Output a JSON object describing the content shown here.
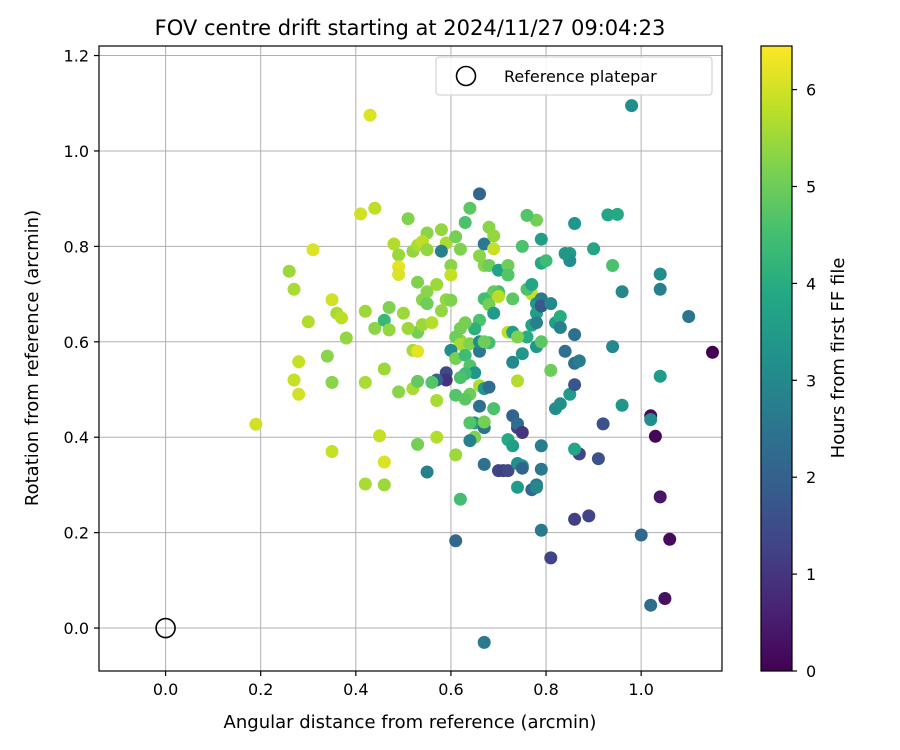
{
  "chart_data": {
    "type": "scatter",
    "title": "FOV centre drift starting at 2024/11/27 09:04:23",
    "xlabel": "Angular distance from reference (arcmin)",
    "ylabel": "Rotation from reference (arcmin)",
    "xlim": [
      -0.14,
      1.17
    ],
    "ylim": [
      -0.09,
      1.22
    ],
    "xticks": [
      0.0,
      0.2,
      0.4,
      0.6,
      0.8,
      1.0
    ],
    "yticks": [
      0.0,
      0.2,
      0.4,
      0.6,
      0.8,
      1.0,
      1.2
    ],
    "xtick_labels": [
      "0.0",
      "0.2",
      "0.4",
      "0.6",
      "0.8",
      "1.0"
    ],
    "ytick_labels": [
      "0.0",
      "0.2",
      "0.4",
      "0.6",
      "0.8",
      "1.0",
      "1.2"
    ],
    "grid": true,
    "legend": {
      "location": "top-right",
      "entries": [
        "Reference platepar"
      ]
    },
    "colorbar": {
      "label": "Hours from first FF file",
      "colormap": "viridis",
      "range": [
        0,
        6.45
      ],
      "ticks": [
        0,
        1,
        2,
        3,
        4,
        5,
        6
      ],
      "tick_labels": [
        "0",
        "1",
        "2",
        "3",
        "4",
        "5",
        "6"
      ]
    },
    "reference_point": {
      "x": 0.0,
      "y": 0.0
    },
    "points": [
      [
        0.43,
        1.075,
        6.1
      ],
      [
        0.41,
        0.868,
        6.0
      ],
      [
        0.44,
        0.88,
        5.8
      ],
      [
        0.31,
        0.793,
        6.1
      ],
      [
        0.26,
        0.748,
        5.5
      ],
      [
        0.27,
        0.71,
        5.6
      ],
      [
        0.3,
        0.642,
        5.7
      ],
      [
        0.28,
        0.558,
        5.9
      ],
      [
        0.27,
        0.52,
        5.9
      ],
      [
        0.28,
        0.49,
        6.0
      ],
      [
        0.19,
        0.427,
        6.0
      ],
      [
        0.35,
        0.688,
        6.0
      ],
      [
        0.36,
        0.66,
        5.6
      ],
      [
        0.37,
        0.65,
        5.8
      ],
      [
        0.34,
        0.57,
        5.3
      ],
      [
        0.38,
        0.608,
        5.4
      ],
      [
        0.35,
        0.515,
        5.3
      ],
      [
        0.35,
        0.37,
        5.9
      ],
      [
        0.42,
        0.515,
        5.6
      ],
      [
        0.42,
        0.302,
        5.6
      ],
      [
        0.46,
        0.3,
        5.5
      ],
      [
        0.45,
        0.403,
        5.9
      ],
      [
        0.46,
        0.348,
        6.1
      ],
      [
        0.46,
        0.543,
        5.5
      ],
      [
        0.44,
        0.628,
        5.3
      ],
      [
        0.42,
        0.664,
        5.5
      ],
      [
        0.46,
        0.645,
        4.3
      ],
      [
        0.47,
        0.672,
        5.2
      ],
      [
        0.47,
        0.625,
        5.4
      ],
      [
        0.48,
        0.805,
        5.7
      ],
      [
        0.49,
        0.782,
        5.5
      ],
      [
        0.49,
        0.757,
        6.2
      ],
      [
        0.49,
        0.741,
        6.1
      ],
      [
        0.51,
        0.858,
        5.2
      ],
      [
        0.52,
        0.79,
        5.4
      ],
      [
        0.53,
        0.802,
        5.6
      ],
      [
        0.55,
        0.828,
        5.3
      ],
      [
        0.54,
        0.81,
        5.8
      ],
      [
        0.55,
        0.793,
        5.4
      ],
      [
        0.53,
        0.725,
        5.2
      ],
      [
        0.54,
        0.688,
        5.3
      ],
      [
        0.55,
        0.705,
        5.3
      ],
      [
        0.53,
        0.62,
        5.1
      ],
      [
        0.51,
        0.628,
        5.5
      ],
      [
        0.52,
        0.582,
        5.6
      ],
      [
        0.53,
        0.58,
        6.2
      ],
      [
        0.52,
        0.502,
        5.6
      ],
      [
        0.49,
        0.495,
        5.3
      ],
      [
        0.5,
        0.66,
        5.5
      ],
      [
        0.54,
        0.636,
        5.5
      ],
      [
        0.56,
        0.64,
        5.7
      ],
      [
        0.55,
        0.68,
        5.0
      ],
      [
        0.57,
        0.72,
        5.5
      ],
      [
        0.58,
        0.835,
        5.4
      ],
      [
        0.59,
        0.807,
        5.6
      ],
      [
        0.58,
        0.79,
        2.8
      ],
      [
        0.6,
        0.76,
        5.3
      ],
      [
        0.6,
        0.74,
        5.9
      ],
      [
        0.59,
        0.688,
        5.4
      ],
      [
        0.58,
        0.665,
        5.4
      ],
      [
        0.6,
        0.687,
        5.2
      ],
      [
        0.61,
        0.82,
        5.1
      ],
      [
        0.62,
        0.794,
        5.2
      ],
      [
        0.63,
        0.85,
        4.6
      ],
      [
        0.64,
        0.88,
        4.8
      ],
      [
        0.66,
        0.91,
        2.1
      ],
      [
        0.67,
        0.805,
        2.6
      ],
      [
        0.68,
        0.84,
        5.3
      ],
      [
        0.69,
        0.822,
        5.4
      ],
      [
        0.69,
        0.795,
        5.9
      ],
      [
        0.66,
        0.78,
        5.3
      ],
      [
        0.67,
        0.76,
        5.3
      ],
      [
        0.68,
        0.76,
        5.0
      ],
      [
        0.7,
        0.75,
        3.7
      ],
      [
        0.72,
        0.76,
        5.0
      ],
      [
        0.72,
        0.74,
        4.7
      ],
      [
        0.73,
        0.69,
        4.8
      ],
      [
        0.7,
        0.705,
        4.5
      ],
      [
        0.69,
        0.705,
        4.9
      ],
      [
        0.68,
        0.692,
        5.0
      ],
      [
        0.67,
        0.69,
        4.5
      ],
      [
        0.68,
        0.678,
        5.1
      ],
      [
        0.7,
        0.7,
        4.7
      ],
      [
        0.7,
        0.695,
        5.8
      ],
      [
        0.69,
        0.66,
        3.5
      ],
      [
        0.66,
        0.645,
        4.6
      ],
      [
        0.65,
        0.627,
        4.1
      ],
      [
        0.63,
        0.64,
        5.1
      ],
      [
        0.62,
        0.628,
        5.1
      ],
      [
        0.62,
        0.602,
        5.3
      ],
      [
        0.61,
        0.61,
        5.0
      ],
      [
        0.62,
        0.595,
        5.6
      ],
      [
        0.6,
        0.582,
        3.1
      ],
      [
        0.61,
        0.565,
        5.1
      ],
      [
        0.63,
        0.572,
        4.4
      ],
      [
        0.64,
        0.596,
        5.2
      ],
      [
        0.64,
        0.55,
        4.7
      ],
      [
        0.65,
        0.535,
        3.4
      ],
      [
        0.63,
        0.533,
        4.4
      ],
      [
        0.62,
        0.525,
        4.6
      ],
      [
        0.64,
        0.49,
        5.0
      ],
      [
        0.61,
        0.488,
        4.7
      ],
      [
        0.63,
        0.48,
        4.8
      ],
      [
        0.59,
        0.535,
        1.4
      ],
      [
        0.59,
        0.52,
        0.9
      ],
      [
        0.57,
        0.52,
        2.1
      ],
      [
        0.57,
        0.477,
        5.6
      ],
      [
        0.56,
        0.515,
        4.7
      ],
      [
        0.57,
        0.4,
        5.7
      ],
      [
        0.53,
        0.517,
        4.9
      ],
      [
        0.53,
        0.385,
        5.1
      ],
      [
        0.55,
        0.327,
        2.8
      ],
      [
        0.61,
        0.363,
        5.5
      ],
      [
        0.62,
        0.27,
        4.5
      ],
      [
        0.61,
        0.183,
        2.2
      ],
      [
        0.65,
        0.43,
        3.6
      ],
      [
        0.64,
        0.43,
        4.7
      ],
      [
        0.65,
        0.4,
        5.2
      ],
      [
        0.64,
        0.393,
        2.8
      ],
      [
        0.66,
        0.465,
        2.4
      ],
      [
        0.67,
        0.42,
        2.5
      ],
      [
        0.67,
        0.432,
        5.1
      ],
      [
        0.67,
        0.343,
        2.4
      ],
      [
        0.66,
        0.508,
        5.7
      ],
      [
        0.67,
        0.502,
        3.4
      ],
      [
        0.68,
        0.505,
        2.3
      ],
      [
        0.69,
        0.46,
        4.6
      ],
      [
        0.7,
        0.33,
        1.3
      ],
      [
        0.71,
        0.33,
        1.2
      ],
      [
        0.72,
        0.33,
        1.4
      ],
      [
        0.72,
        0.395,
        3.9
      ],
      [
        0.73,
        0.382,
        3.6
      ],
      [
        0.74,
        0.42,
        1.2
      ],
      [
        0.73,
        0.445,
        2.0
      ],
      [
        0.74,
        0.428,
        2.3
      ],
      [
        0.75,
        0.41,
        1.0
      ],
      [
        0.74,
        0.345,
        3.2
      ],
      [
        0.75,
        0.34,
        3.4
      ],
      [
        0.75,
        0.335,
        2.1
      ],
      [
        0.74,
        0.295,
        3.5
      ],
      [
        0.77,
        0.29,
        2.2
      ],
      [
        0.78,
        0.3,
        2.6
      ],
      [
        0.78,
        0.295,
        3.0
      ],
      [
        0.79,
        0.333,
        2.6
      ],
      [
        0.79,
        0.382,
        2.7
      ],
      [
        0.79,
        0.205,
        2.6
      ],
      [
        0.81,
        0.147,
        1.3
      ],
      [
        0.67,
        -0.03,
        2.6
      ],
      [
        0.66,
        0.58,
        2.6
      ],
      [
        0.66,
        0.6,
        3.1
      ],
      [
        0.68,
        0.598,
        4.5
      ],
      [
        0.67,
        0.6,
        5.0
      ],
      [
        0.72,
        0.62,
        5.8
      ],
      [
        0.73,
        0.62,
        3.6
      ],
      [
        0.73,
        0.557,
        3.0
      ],
      [
        0.75,
        0.575,
        3.4
      ],
      [
        0.74,
        0.518,
        5.7
      ],
      [
        0.76,
        0.61,
        4.0
      ],
      [
        0.77,
        0.7,
        5.9
      ],
      [
        0.76,
        0.71,
        4.6
      ],
      [
        0.77,
        0.72,
        3.8
      ],
      [
        0.78,
        0.68,
        3.3
      ],
      [
        0.78,
        0.66,
        3.6
      ],
      [
        0.77,
        0.635,
        3.7
      ],
      [
        0.78,
        0.64,
        2.8
      ],
      [
        0.78,
        0.59,
        3.4
      ],
      [
        0.79,
        0.69,
        2.6
      ],
      [
        0.79,
        0.675,
        1.8
      ],
      [
        0.79,
        0.6,
        4.8
      ],
      [
        0.81,
        0.54,
        5.0
      ],
      [
        0.81,
        0.68,
        3.0
      ],
      [
        0.82,
        0.64,
        3.6
      ],
      [
        0.83,
        0.653,
        4.0
      ],
      [
        0.83,
        0.63,
        2.8
      ],
      [
        0.85,
        0.785,
        3.5
      ],
      [
        0.85,
        0.77,
        3.1
      ],
      [
        0.84,
        0.785,
        3.4
      ],
      [
        0.79,
        0.765,
        3.9
      ],
      [
        0.8,
        0.77,
        4.4
      ],
      [
        0.79,
        0.815,
        3.6
      ],
      [
        0.78,
        0.855,
        5.1
      ],
      [
        0.76,
        0.865,
        4.7
      ],
      [
        0.75,
        0.8,
        4.6
      ],
      [
        0.74,
        0.61,
        5.2
      ],
      [
        0.82,
        0.46,
        3.1
      ],
      [
        0.83,
        0.47,
        3.2
      ],
      [
        0.85,
        0.49,
        3.5
      ],
      [
        0.84,
        0.58,
        2.4
      ],
      [
        0.86,
        0.555,
        2.4
      ],
      [
        0.87,
        0.56,
        2.7
      ],
      [
        0.86,
        0.615,
        2.4
      ],
      [
        0.86,
        0.51,
        1.7
      ],
      [
        0.86,
        0.228,
        1.2
      ],
      [
        0.89,
        0.235,
        1.3
      ],
      [
        0.87,
        0.365,
        1.3
      ],
      [
        0.86,
        0.375,
        3.8
      ],
      [
        0.91,
        0.355,
        1.6
      ],
      [
        0.92,
        0.428,
        1.6
      ],
      [
        0.86,
        0.848,
        3.3
      ],
      [
        0.9,
        0.795,
        3.8
      ],
      [
        0.93,
        0.866,
        3.8
      ],
      [
        0.95,
        0.867,
        3.9
      ],
      [
        0.94,
        0.76,
        4.6
      ],
      [
        0.94,
        0.59,
        3.0
      ],
      [
        0.96,
        0.705,
        3.0
      ],
      [
        0.96,
        0.467,
        3.4
      ],
      [
        0.98,
        1.095,
        3.1
      ],
      [
        1.0,
        0.195,
        2.2
      ],
      [
        1.02,
        0.048,
        2.3
      ],
      [
        1.03,
        0.402,
        0.1
      ],
      [
        1.02,
        0.445,
        0.2
      ],
      [
        1.02,
        0.437,
        3.2
      ],
      [
        1.04,
        0.528,
        3.5
      ],
      [
        1.04,
        0.275,
        0.4
      ],
      [
        1.04,
        0.71,
        2.8
      ],
      [
        1.04,
        0.742,
        3.1
      ],
      [
        1.05,
        0.062,
        0.3
      ],
      [
        1.06,
        0.186,
        0.2
      ],
      [
        1.1,
        0.653,
        2.5
      ],
      [
        1.15,
        0.578,
        0.0
      ]
    ]
  }
}
